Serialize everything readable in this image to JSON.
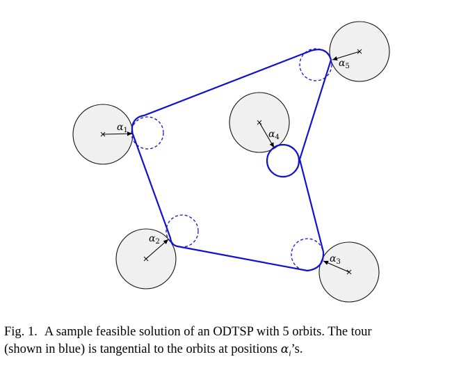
{
  "figure": {
    "labels": [
      {
        "symbol": "α",
        "index": "1"
      },
      {
        "symbol": "α",
        "index": "2"
      },
      {
        "symbol": "α",
        "index": "3"
      },
      {
        "symbol": "α",
        "index": "4"
      },
      {
        "symbol": "α",
        "index": "5"
      }
    ]
  },
  "caption": {
    "label": "Fig. 1.",
    "line1": "A sample feasible solution of an ODTSP with 5 orbits. The tour",
    "line2_before": "(shown in blue) is tangential to the orbits at positions ",
    "line2_symbol": "α",
    "line2_index": "i",
    "line2_after": "’s."
  },
  "colors": {
    "tour": "#1010d0",
    "orbit_fill": "#f0f0f0",
    "orbit_stroke": "#111111"
  }
}
